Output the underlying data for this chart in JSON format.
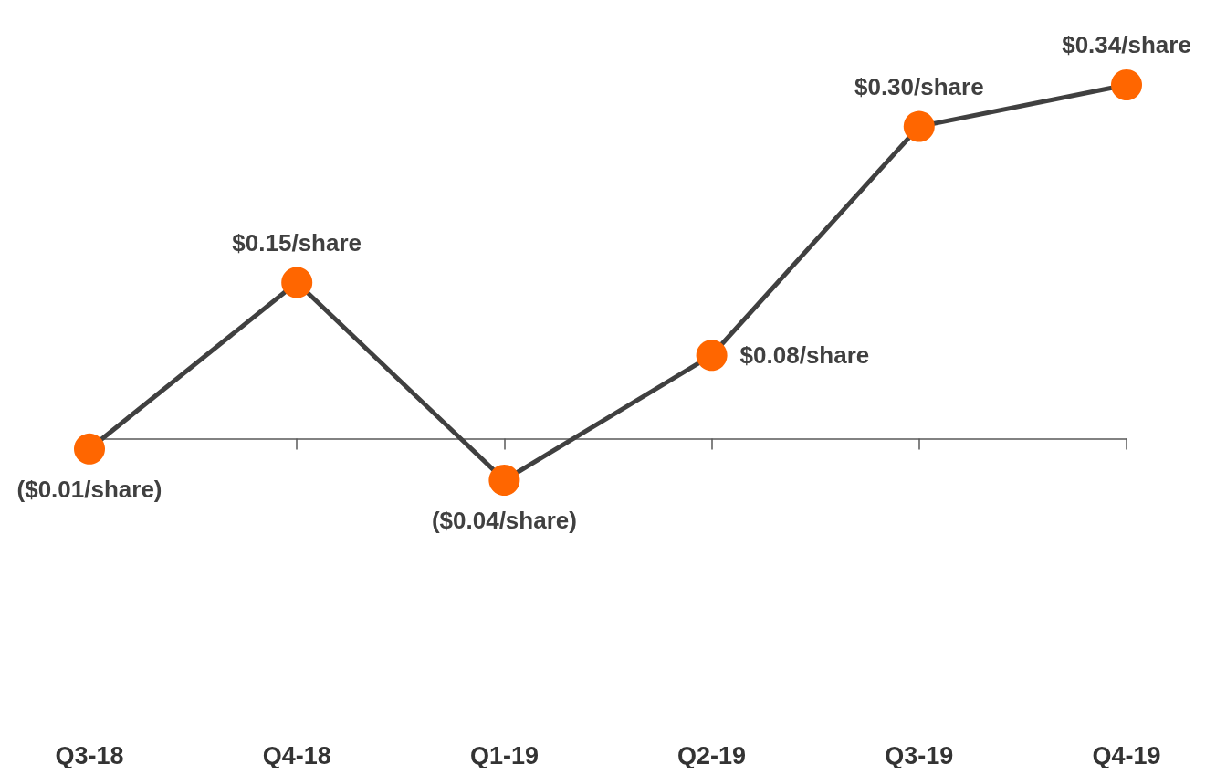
{
  "chart_data": {
    "type": "line",
    "categories": [
      "Q3-18",
      "Q4-18",
      "Q1-19",
      "Q2-19",
      "Q3-19",
      "Q4-19"
    ],
    "series": [
      {
        "color": "#404040",
        "colors": [
          "#ff6600",
          "#ff6600",
          "#ff6600",
          "#ff6600",
          "#ff6600",
          "#ff6600"
        ],
        "values": [
          -0.01,
          0.15,
          -0.04,
          0.08,
          0.3,
          0.34
        ],
        "value_labels": [
          "($0.01/share)",
          "$0.15/share",
          "($0.04/share)",
          "$0.08/share",
          "$0.30/share",
          "$0.34/share"
        ]
      }
    ],
    "marker": "circle",
    "grid": false
  }
}
